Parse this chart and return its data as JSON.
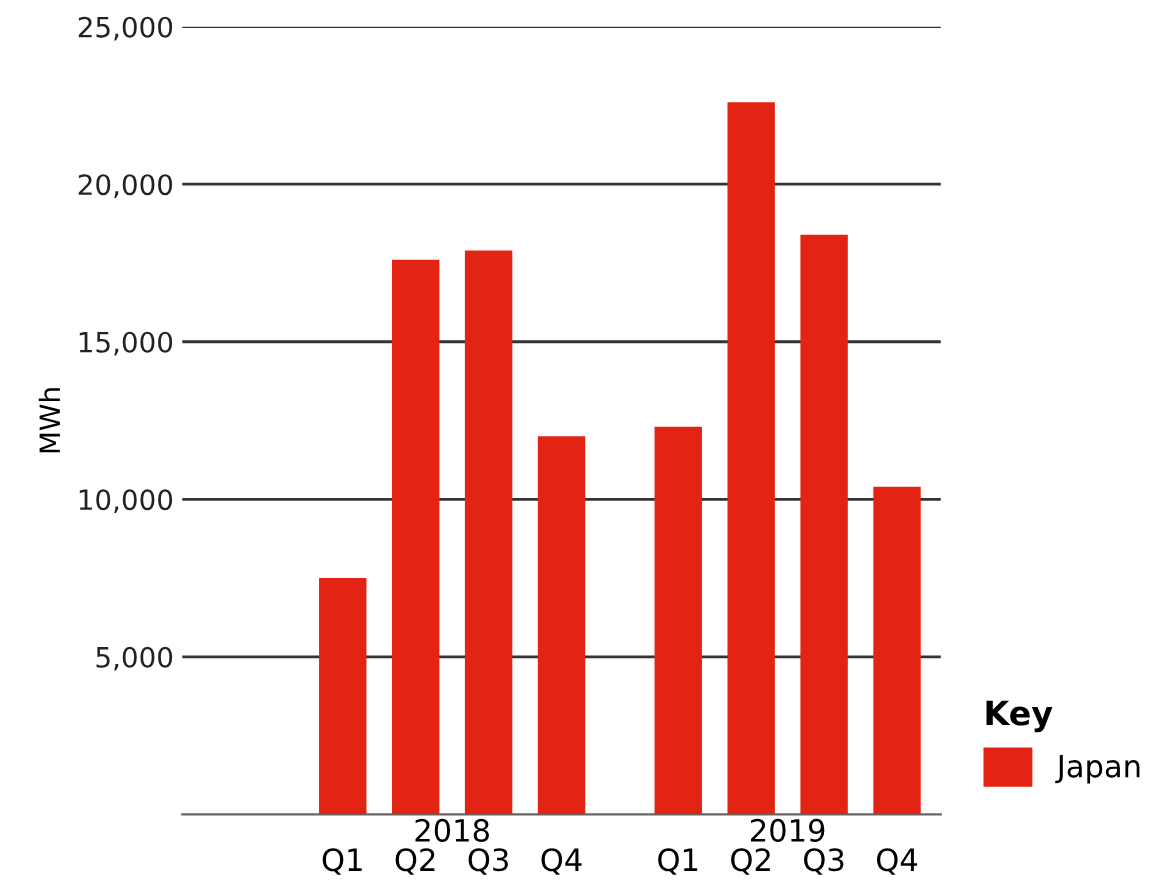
{
  "chart_data": {
    "type": "bar",
    "ylabel": "MWh",
    "legend_title": "Key",
    "legend": "right",
    "categories": [
      "Q1",
      "Q2",
      "Q3",
      "Q4",
      "Q1",
      "Q2",
      "Q3",
      "Q4"
    ],
    "series": [
      {
        "name": "Japan",
        "color": "#e32415",
        "values": [
          7500,
          17600,
          17900,
          12000,
          12300,
          22600,
          18400,
          10400
        ]
      }
    ],
    "annotations": [
      "2018",
      "2019"
    ],
    "ylim": [
      0,
      25000
    ],
    "yticks": [
      {
        "value": 5000,
        "label": "5,000"
      },
      {
        "value": 10000,
        "label": "10,000"
      },
      {
        "value": 15000,
        "label": "15,000"
      },
      {
        "value": 20000,
        "label": "20,000"
      },
      {
        "value": 25000,
        "label": "25,000"
      }
    ],
    "grid": "y"
  }
}
